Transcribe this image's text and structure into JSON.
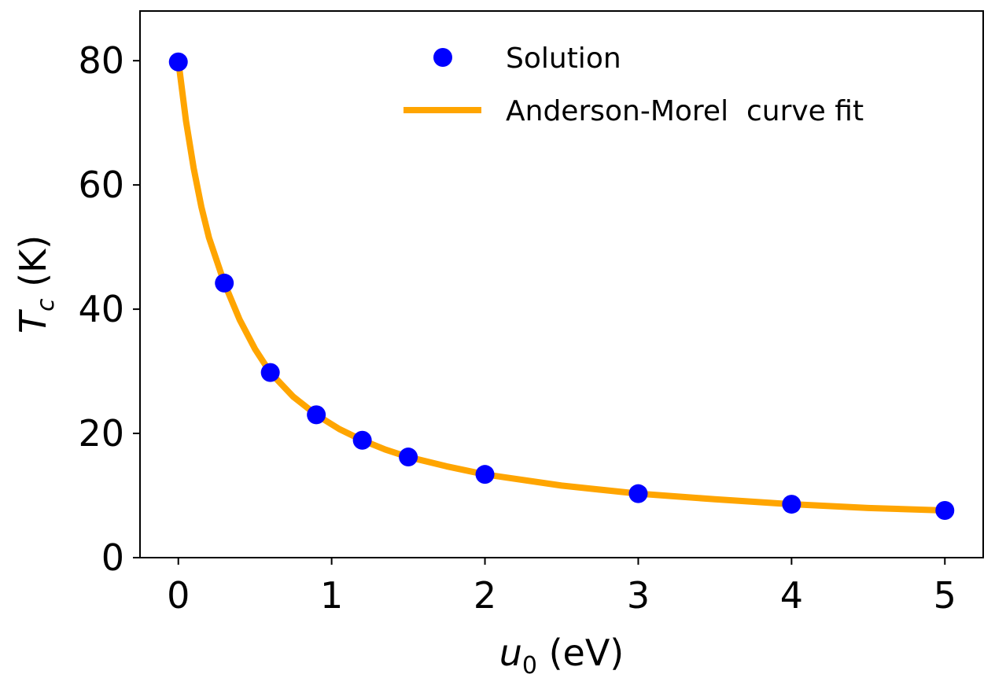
{
  "chart_data": {
    "type": "scatter",
    "title": "",
    "xlabel": {
      "var": "u",
      "sub": "0",
      "unit": " (eV)"
    },
    "ylabel": {
      "var": "T",
      "sub": "c",
      "unit": " (K)"
    },
    "xlim": [
      -0.25,
      5.25
    ],
    "ylim": [
      0,
      88
    ],
    "xticks": [
      0,
      1,
      2,
      3,
      4,
      5
    ],
    "yticks": [
      0,
      20,
      40,
      60,
      80
    ],
    "grid": false,
    "legend_position": "top-right",
    "series": [
      {
        "name": "Solution",
        "kind": "scatter",
        "color": "#0000ff",
        "x": [
          0,
          0.3,
          0.6,
          0.9,
          1.2,
          1.5,
          2.0,
          3.0,
          4.0,
          5.0
        ],
        "y": [
          79.8,
          44.2,
          29.8,
          23.0,
          18.9,
          16.2,
          13.4,
          10.3,
          8.6,
          7.6
        ]
      },
      {
        "name": "Anderson-Morel  curve fit",
        "kind": "line",
        "color": "#ffa500",
        "x": [
          0,
          0.05,
          0.1,
          0.15,
          0.2,
          0.3,
          0.4,
          0.5,
          0.6,
          0.75,
          0.9,
          1.05,
          1.2,
          1.35,
          1.5,
          1.75,
          2.0,
          2.5,
          3.0,
          3.5,
          4.0,
          4.5,
          5.0
        ],
        "y": [
          80.0,
          70.3,
          62.7,
          56.5,
          51.5,
          44.2,
          38.3,
          33.6,
          29.8,
          25.9,
          23.0,
          20.7,
          18.9,
          17.4,
          16.2,
          14.7,
          13.4,
          11.6,
          10.3,
          9.4,
          8.6,
          8.0,
          7.6
        ]
      }
    ]
  }
}
